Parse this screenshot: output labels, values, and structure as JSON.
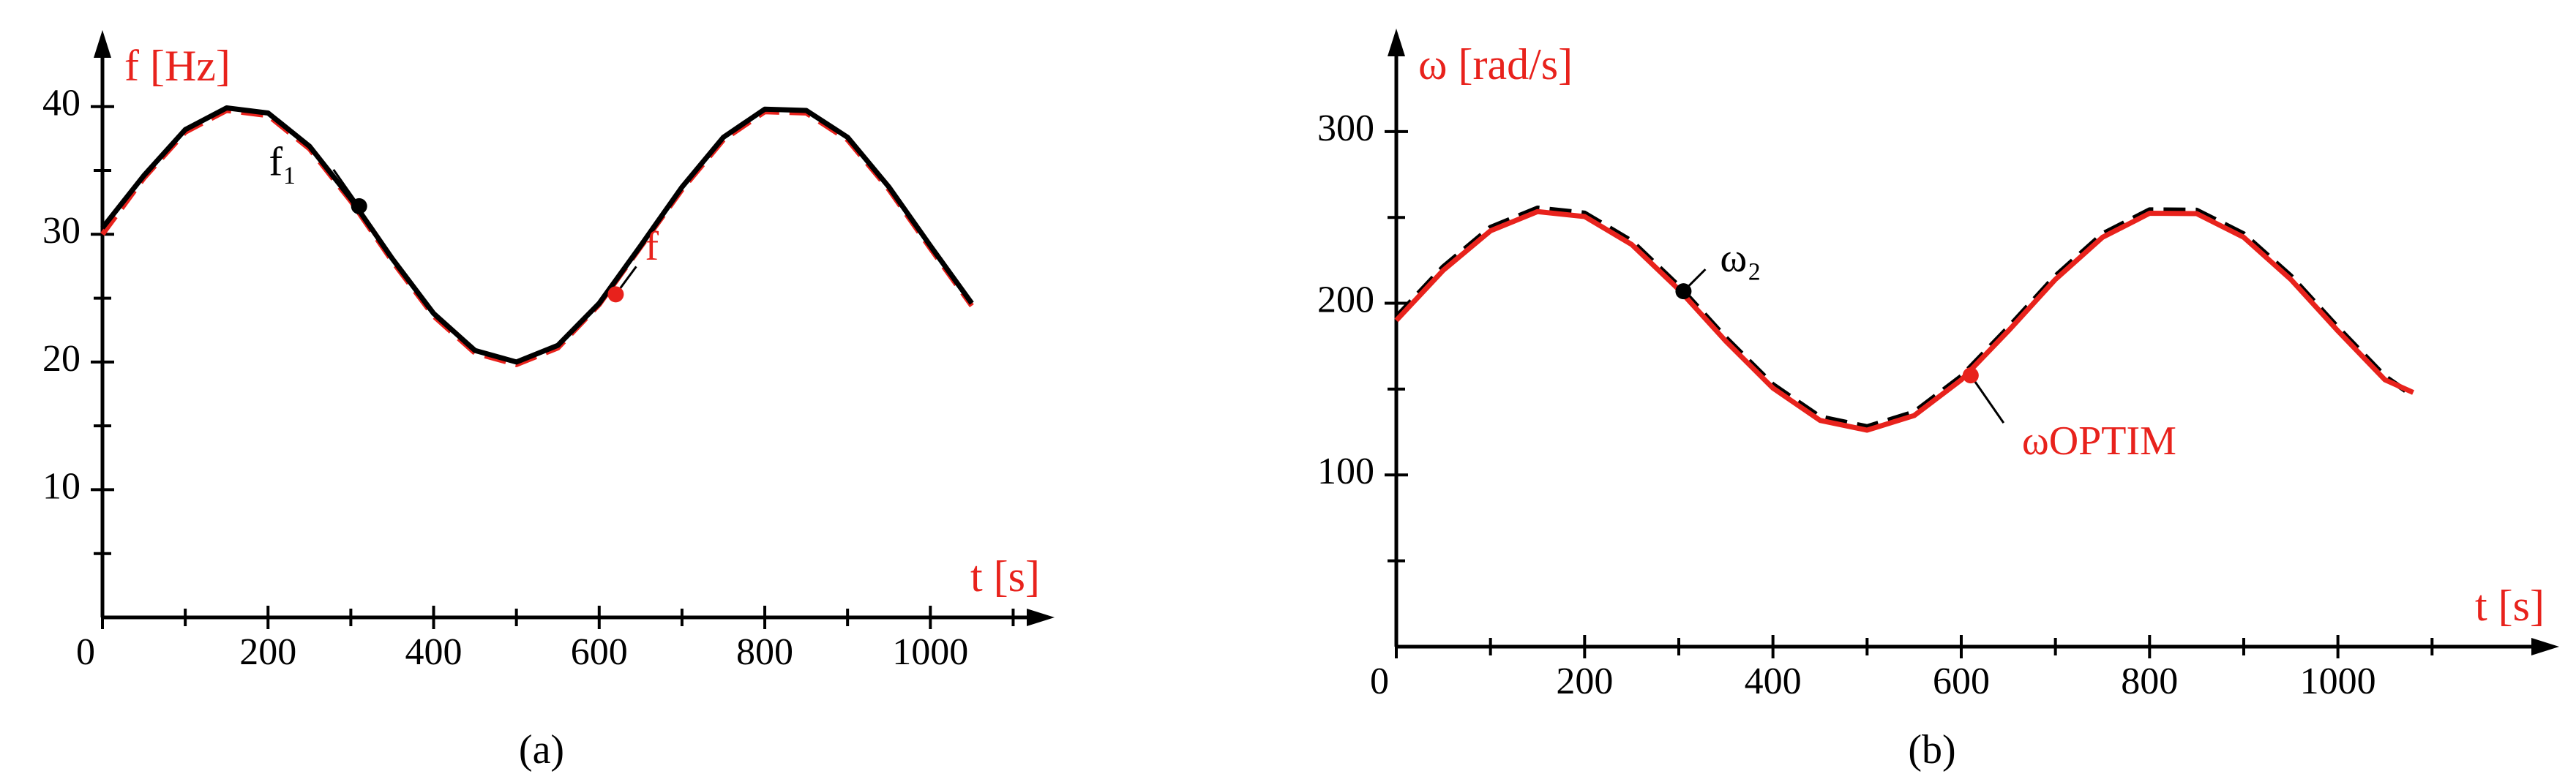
{
  "chart_data": [
    {
      "type": "line",
      "panel_label": "(a)",
      "ylabel": "f [Hz]",
      "xlabel": "t [s]",
      "x": [
        0,
        50,
        100,
        150,
        200,
        250,
        300,
        350,
        400,
        450,
        500,
        550,
        600,
        650,
        700,
        750,
        800,
        850,
        900,
        950,
        1000,
        1050
      ],
      "xlim": [
        0,
        1150
      ],
      "ylim": [
        0,
        46
      ],
      "xticks": [
        0,
        200,
        400,
        600,
        800,
        1000
      ],
      "yticks": [
        10,
        20,
        30,
        40
      ],
      "xminor": [
        100,
        300,
        500,
        700,
        900,
        1100
      ],
      "yminor": [
        5,
        15,
        25,
        35
      ],
      "series": [
        {
          "name": "f",
          "color": "#e8221c",
          "dash": true,
          "values": [
            30,
            34.4,
            38.0,
            39.7,
            39.3,
            36.7,
            32.6,
            27.9,
            23.6,
            20.7,
            19.8,
            21.1,
            24.5,
            29.0,
            33.5,
            37.4,
            39.6,
            39.5,
            37.4,
            33.5,
            28.9,
            24.4
          ],
          "marker": {
            "x": 620,
            "y": 25.3
          }
        },
        {
          "name": "f₁",
          "color": "#000000",
          "dash": false,
          "values": [
            30.5,
            34.6,
            38.2,
            39.9,
            39.5,
            36.9,
            32.8,
            28.1,
            23.8,
            20.9,
            20.0,
            21.3,
            24.6,
            29.1,
            33.7,
            37.6,
            39.8,
            39.7,
            37.6,
            33.7,
            29.1,
            24.6
          ],
          "marker": {
            "x": 310,
            "y": 32.2
          }
        }
      ]
    },
    {
      "type": "line",
      "panel_label": "(b)",
      "ylabel": "ω [rad/s]",
      "xlabel": "t [s]",
      "x": [
        0,
        50,
        100,
        150,
        200,
        250,
        300,
        350,
        400,
        450,
        500,
        550,
        600,
        650,
        700,
        750,
        800,
        850,
        900,
        950,
        1000,
        1050,
        1080
      ],
      "xlim": [
        0,
        1235
      ],
      "ylim": [
        0,
        360
      ],
      "xticks": [
        0,
        200,
        400,
        600,
        800,
        1000
      ],
      "yticks": [
        100,
        200,
        300
      ],
      "xminor": [
        100,
        300,
        500,
        700,
        900,
        1100
      ],
      "yminor": [
        50,
        150,
        250
      ],
      "series": [
        {
          "name": "ω₂",
          "color": "#000000",
          "dash": true,
          "values": [
            192,
            221.3,
            244.2,
            255.4,
            252.5,
            236.2,
            210.0,
            179.9,
            152.6,
            133.8,
            128.1,
            136.6,
            157.4,
            185.9,
            215.9,
            240.4,
            254.4,
            254.2,
            240.4,
            215.9,
            185.9,
            157.4,
            146
          ],
          "marker": {
            "x": 305,
            "y": 207
          }
        },
        {
          "name": "ωOPTIM",
          "color": "#e8221c",
          "dash": false,
          "values": [
            190,
            219.3,
            242.2,
            253.4,
            250.5,
            234.2,
            208.0,
            177.9,
            150.6,
            131.8,
            126.1,
            134.6,
            155.4,
            183.9,
            213.9,
            238.4,
            252.4,
            252.2,
            238.4,
            213.9,
            183.9,
            155.4,
            148
          ],
          "marker": {
            "x": 610,
            "y": 158
          }
        }
      ]
    }
  ]
}
